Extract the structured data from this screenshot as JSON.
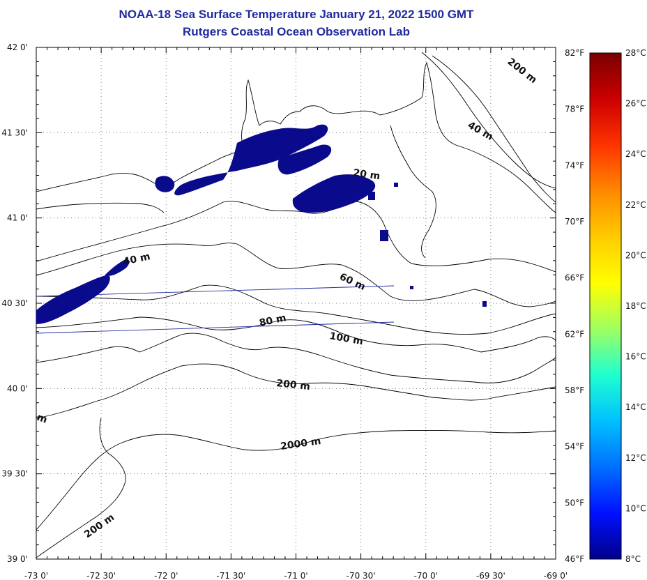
{
  "title": {
    "line1": "NOAA-18 Sea Surface Temperature January 21, 2022 1500 GMT",
    "line2": "Rutgers Coastal Ocean Observation Lab"
  },
  "axes": {
    "lat_labels": [
      "42 0'",
      "41 30'",
      "41 0'",
      "40 30'",
      "40 0'",
      "39 30'",
      "39 0'"
    ],
    "lon_labels": [
      "-73 0'",
      "-72 30'",
      "-72 0'",
      "-71 30'",
      "-71 0'",
      "-70 30'",
      "-70 0'",
      "-69 30'",
      "-69 0'"
    ],
    "fahrenheit_labels": [
      "82°F",
      "78°F",
      "74°F",
      "70°F",
      "66°F",
      "62°F",
      "58°F",
      "54°F",
      "50°F",
      "46°F"
    ]
  },
  "colorbar": {
    "celsius_labels": [
      "28°C",
      "26°C",
      "24°C",
      "22°C",
      "20°C",
      "18°C",
      "16°C",
      "14°C",
      "12°C",
      "10°C",
      "8°C"
    ],
    "colors": [
      "#7a0000",
      "#cc0000",
      "#ff3300",
      "#ff8800",
      "#ffcc00",
      "#ffff00",
      "#a0ff60",
      "#20ffd0",
      "#00c0ff",
      "#0070ff",
      "#0010ff",
      "#00008a"
    ]
  },
  "contour_labels": [
    "200 m",
    "40 m",
    "20 m",
    "40 m",
    "60 m",
    "80 m",
    "100 m",
    "200 m",
    "2000 m",
    "200 m",
    "m"
  ],
  "sst_color": "#0a0a8c"
}
